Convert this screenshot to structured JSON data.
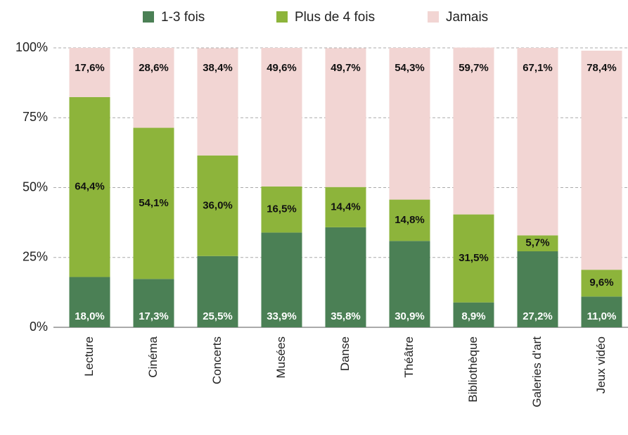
{
  "chart_data": {
    "type": "stacked_bar",
    "categories": [
      "Lecture",
      "Cinéma",
      "Concerts",
      "Musées",
      "Danse",
      "Théâtre",
      "Bibliothèque",
      "Galeries d'art",
      "Jeux vidéo"
    ],
    "series": [
      {
        "name": "1-3 fois",
        "color": "#4b8055",
        "values": [
          18.0,
          17.3,
          25.5,
          33.9,
          35.8,
          30.9,
          8.9,
          27.2,
          11.0
        ],
        "value_labels": [
          "18,0%",
          "17,3%",
          "25,5%",
          "33,9%",
          "35,8%",
          "30,9%",
          "8,9%",
          "27,2%",
          "11,0%"
        ]
      },
      {
        "name": "Plus de 4 fois",
        "color": "#8db43b",
        "values": [
          64.4,
          54.1,
          36.0,
          16.5,
          14.4,
          14.8,
          31.5,
          5.7,
          9.6
        ],
        "value_labels": [
          "64,4%",
          "54,1%",
          "36,0%",
          "16,5%",
          "14,4%",
          "14,8%",
          "31,5%",
          "5,7%",
          "9,6%"
        ]
      },
      {
        "name": "Jamais",
        "color": "#f2d5d3",
        "values": [
          17.6,
          28.6,
          38.4,
          49.6,
          49.7,
          54.3,
          59.7,
          67.1,
          78.4
        ],
        "value_labels": [
          "17,6%",
          "28,6%",
          "38,4%",
          "49,6%",
          "49,7%",
          "54,3%",
          "59,7%",
          "67,1%",
          "78,4%"
        ]
      }
    ],
    "ylim": [
      0,
      100
    ],
    "yticks": [
      {
        "value": 0,
        "label": "0%"
      },
      {
        "value": 25,
        "label": "25%"
      },
      {
        "value": 50,
        "label": "50%"
      },
      {
        "value": 75,
        "label": "75%"
      },
      {
        "value": 100,
        "label": "100%"
      }
    ],
    "grid": true,
    "legend": "top"
  }
}
